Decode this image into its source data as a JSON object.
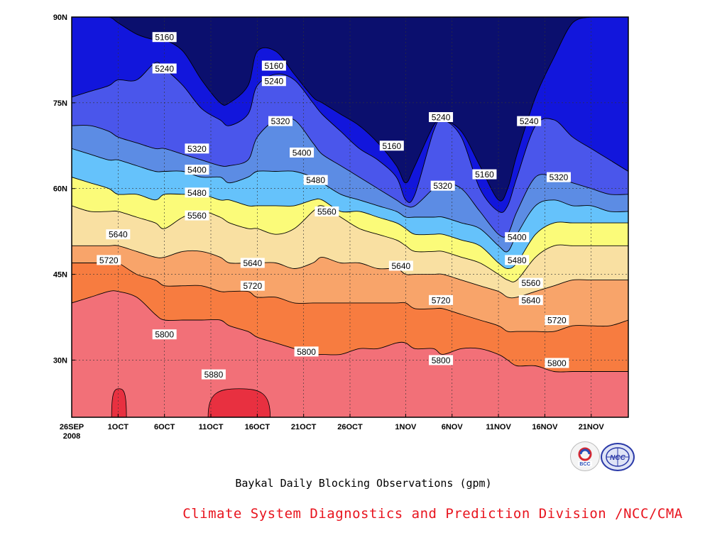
{
  "chart_data": {
    "type": "heatmap",
    "title": "Baykal Daily Blocking Observations (gpm)",
    "x_ticks": [
      {
        "day": 0,
        "label": "26SEP",
        "label2": "2008"
      },
      {
        "day": 5,
        "label": "1OCT"
      },
      {
        "day": 10,
        "label": "6OCT"
      },
      {
        "day": 15,
        "label": "11OCT"
      },
      {
        "day": 20,
        "label": "16OCT"
      },
      {
        "day": 25,
        "label": "21OCT"
      },
      {
        "day": 30,
        "label": "26OCT"
      },
      {
        "day": 36,
        "label": "1NOV"
      },
      {
        "day": 41,
        "label": "6NOV"
      },
      {
        "day": 46,
        "label": "11NOV"
      },
      {
        "day": 51,
        "label": "16NOV"
      },
      {
        "day": 56,
        "label": "21NOV"
      }
    ],
    "x_range": [
      0,
      60
    ],
    "y_ticks": [
      {
        "lat": 30,
        "label": "30N"
      },
      {
        "lat": 45,
        "label": "45N"
      },
      {
        "lat": 60,
        "label": "60N"
      },
      {
        "lat": 75,
        "label": "75N"
      },
      {
        "lat": 90,
        "label": "90N"
      }
    ],
    "y_range": [
      20,
      90
    ],
    "grid": true,
    "levels": [
      5160,
      5240,
      5320,
      5400,
      5480,
      5560,
      5640,
      5720,
      5800,
      5880
    ],
    "colors": [
      "#0b0f6e",
      "#1216dc",
      "#4a56eb",
      "#5c8ce4",
      "#65c2fb",
      "#fbfb79",
      "#f9e0a2",
      "#f8a46a",
      "#f77c40",
      "#f27078",
      "#e83040"
    ],
    "days": [
      0,
      2,
      4,
      5,
      7,
      9,
      10,
      12,
      14,
      16,
      17,
      19,
      20,
      22,
      24,
      26,
      27,
      29,
      31,
      33,
      35,
      36,
      37,
      39,
      40,
      42,
      44,
      46,
      47,
      48,
      50,
      52,
      54,
      56,
      58,
      60
    ],
    "contours": [
      {
        "level": 5160,
        "lats": [
          90,
          90,
          90,
          89,
          87,
          86,
          86,
          84,
          79,
          75,
          75,
          78,
          84,
          84,
          80,
          76,
          75,
          73,
          71,
          68,
          64,
          61,
          64,
          71,
          72,
          70,
          64,
          58,
          60,
          66,
          76,
          83,
          89,
          90,
          90,
          90
        ]
      },
      {
        "level": 5240,
        "lats": [
          76,
          77,
          78,
          79,
          79,
          82,
          81,
          78,
          74,
          72,
          71,
          73,
          78,
          80,
          79,
          75,
          73,
          70,
          67,
          65,
          62,
          58,
          59,
          70,
          72,
          69,
          60,
          56,
          57,
          62,
          71,
          72,
          69,
          67,
          65,
          63
        ]
      },
      {
        "level": 5320,
        "lats": [
          71,
          71,
          70,
          69,
          68,
          67,
          67,
          66,
          65,
          64,
          64,
          65,
          69,
          72,
          72,
          68,
          66,
          64,
          62,
          60,
          58,
          57,
          57,
          60,
          61,
          60,
          56,
          52,
          52,
          56,
          62,
          62,
          61,
          60,
          59,
          59
        ]
      },
      {
        "level": 5400,
        "lats": [
          67,
          66,
          65,
          65,
          64,
          63,
          63,
          63,
          62,
          62,
          61,
          62,
          63,
          63,
          63,
          62,
          61,
          59,
          58,
          57,
          56,
          55,
          55,
          55,
          55,
          54,
          53,
          50,
          49,
          52,
          57,
          58,
          57,
          57,
          56,
          56
        ]
      },
      {
        "level": 5480,
        "lats": [
          62,
          61,
          60,
          59,
          59,
          58,
          59,
          59,
          59,
          58,
          58,
          57,
          57,
          57,
          57,
          58,
          58,
          56,
          56,
          55,
          54,
          53,
          52,
          52,
          52,
          51,
          50,
          47,
          46,
          47,
          52,
          54,
          54,
          54,
          54,
          54
        ]
      },
      {
        "level": 5560,
        "lats": [
          57,
          56,
          56,
          56,
          55,
          54,
          53,
          55,
          56,
          55,
          54,
          53,
          53,
          52,
          53,
          56,
          57,
          55,
          53,
          52,
          51,
          50,
          49,
          49,
          49,
          48,
          47,
          45,
          44,
          44,
          48,
          50,
          50,
          50,
          50,
          50
        ]
      },
      {
        "level": 5640,
        "lats": [
          50,
          50,
          50,
          50,
          49,
          48,
          48,
          49,
          49,
          48,
          47,
          47,
          47,
          47,
          46,
          47,
          48,
          47,
          47,
          46,
          46,
          45,
          45,
          45,
          45,
          44,
          43,
          42,
          41,
          41,
          42,
          43,
          44,
          44,
          44,
          44
        ]
      },
      {
        "level": 5720,
        "lats": [
          47,
          47,
          47,
          47,
          45,
          44,
          43,
          43,
          43,
          42,
          42,
          42,
          41,
          41,
          40,
          40,
          40,
          40,
          40,
          40,
          40,
          40,
          39,
          39,
          39,
          38,
          37,
          36,
          35,
          35,
          35,
          35,
          36,
          36,
          36,
          37
        ]
      },
      {
        "level": 5800,
        "lats": [
          40,
          41,
          42,
          42,
          41,
          38,
          37,
          37,
          37,
          37,
          36,
          35,
          34,
          33,
          32,
          31,
          31,
          31,
          32,
          32,
          33,
          33,
          32,
          32,
          31,
          32,
          32,
          31,
          30,
          29,
          29,
          28,
          28,
          28,
          28,
          28
        ]
      }
    ],
    "max_regions": [
      {
        "level": 5880,
        "day_range": [
          14.7,
          21.4
        ],
        "lat_top": 25
      },
      {
        "level": 5880,
        "day_range": [
          4.3,
          5.9
        ],
        "lat_top": 25
      }
    ],
    "labels": [
      {
        "text": "5160",
        "day": 10,
        "lat": 86.5
      },
      {
        "text": "5240",
        "day": 10,
        "lat": 81
      },
      {
        "text": "5160",
        "day": 21.8,
        "lat": 81.5
      },
      {
        "text": "5240",
        "day": 21.8,
        "lat": 78.8
      },
      {
        "text": "5320",
        "day": 22.5,
        "lat": 71.8
      },
      {
        "text": "5320",
        "day": 13.5,
        "lat": 67
      },
      {
        "text": "5400",
        "day": 13.5,
        "lat": 63.3
      },
      {
        "text": "5480",
        "day": 13.5,
        "lat": 59.3
      },
      {
        "text": "5560",
        "day": 13.5,
        "lat": 55.3
      },
      {
        "text": "5400",
        "day": 24.8,
        "lat": 66.3
      },
      {
        "text": "5480",
        "day": 26.3,
        "lat": 61.5
      },
      {
        "text": "5560",
        "day": 27.5,
        "lat": 56
      },
      {
        "text": "5640",
        "day": 5,
        "lat": 52
      },
      {
        "text": "5720",
        "day": 4,
        "lat": 47.5
      },
      {
        "text": "5640",
        "day": 19.5,
        "lat": 47
      },
      {
        "text": "5720",
        "day": 19.5,
        "lat": 43
      },
      {
        "text": "5800",
        "day": 10,
        "lat": 34.5
      },
      {
        "text": "5800",
        "day": 25.3,
        "lat": 31.5
      },
      {
        "text": "5160",
        "day": 34.5,
        "lat": 67.5
      },
      {
        "text": "5240",
        "day": 39.8,
        "lat": 72.5
      },
      {
        "text": "5320",
        "day": 40,
        "lat": 60.5
      },
      {
        "text": "5640",
        "day": 35.5,
        "lat": 46.5
      },
      {
        "text": "5720",
        "day": 39.8,
        "lat": 40.5
      },
      {
        "text": "5800",
        "day": 39.8,
        "lat": 30
      },
      {
        "text": "5160",
        "day": 44.5,
        "lat": 62.5
      },
      {
        "text": "5240",
        "day": 49.3,
        "lat": 71.8
      },
      {
        "text": "5320",
        "day": 52.5,
        "lat": 62
      },
      {
        "text": "5400",
        "day": 48,
        "lat": 51.5
      },
      {
        "text": "5480",
        "day": 48,
        "lat": 47.5
      },
      {
        "text": "5560",
        "day": 49.5,
        "lat": 43.5
      },
      {
        "text": "5640",
        "day": 49.5,
        "lat": 40.5
      },
      {
        "text": "5720",
        "day": 52.3,
        "lat": 37
      },
      {
        "text": "5800",
        "day": 52.3,
        "lat": 29.5
      },
      {
        "text": "5880",
        "day": 15.3,
        "lat": 27.5
      }
    ]
  },
  "footer": {
    "title": "Baykal Daily Blocking Observations (gpm)",
    "credit": "Climate System Diagnostics and Prediction Division /NCC/CMA",
    "logos": [
      "bcc-logo",
      "ncc-logo"
    ]
  }
}
